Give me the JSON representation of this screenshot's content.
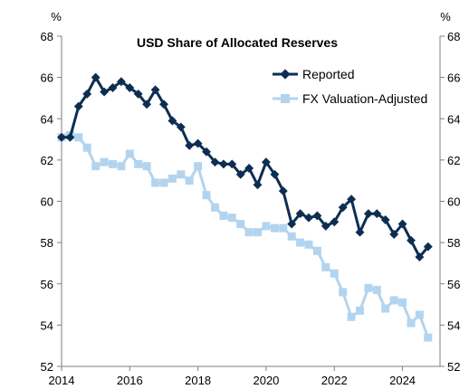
{
  "chart_data": {
    "type": "line",
    "title": "USD Share of Allocated Reserves",
    "unit_left": "%",
    "unit_right": "%",
    "ylim": [
      52,
      68
    ],
    "yticks": [
      52,
      54,
      56,
      58,
      60,
      62,
      64,
      66,
      68
    ],
    "xlim": [
      2014,
      2025.1
    ],
    "xticks": [
      2014,
      2016,
      2018,
      2020,
      2022,
      2024
    ],
    "grid": false,
    "legend_position": "top-right",
    "series": [
      {
        "name": "Reported",
        "color": "#0d2e52",
        "marker": "diamond",
        "x": [
          2014.0,
          2014.25,
          2014.5,
          2014.75,
          2015.0,
          2015.25,
          2015.5,
          2015.75,
          2016.0,
          2016.25,
          2016.5,
          2016.75,
          2017.0,
          2017.25,
          2017.5,
          2017.75,
          2018.0,
          2018.25,
          2018.5,
          2018.75,
          2019.0,
          2019.25,
          2019.5,
          2019.75,
          2020.0,
          2020.25,
          2020.5,
          2020.75,
          2021.0,
          2021.25,
          2021.5,
          2021.75,
          2022.0,
          2022.25,
          2022.5,
          2022.75,
          2023.0,
          2023.25,
          2023.5,
          2023.75,
          2024.0,
          2024.25,
          2024.5,
          2024.75
        ],
        "values": [
          63.1,
          63.1,
          64.6,
          65.2,
          66.0,
          65.3,
          65.5,
          65.8,
          65.5,
          65.2,
          64.7,
          65.4,
          64.7,
          63.9,
          63.6,
          62.7,
          62.8,
          62.4,
          61.9,
          61.8,
          61.8,
          61.3,
          61.6,
          60.8,
          61.9,
          61.3,
          60.5,
          58.9,
          59.4,
          59.2,
          59.3,
          58.8,
          59.0,
          59.7,
          60.1,
          58.5,
          59.4,
          59.4,
          59.1,
          58.4,
          58.9,
          58.1,
          57.3,
          57.8
        ]
      },
      {
        "name": "FX Valuation-Adjusted",
        "color": "#b3d4ee",
        "marker": "square",
        "x": [
          2014.0,
          2014.25,
          2014.5,
          2014.75,
          2015.0,
          2015.25,
          2015.5,
          2015.75,
          2016.0,
          2016.25,
          2016.5,
          2016.75,
          2017.0,
          2017.25,
          2017.5,
          2017.75,
          2018.0,
          2018.25,
          2018.5,
          2018.75,
          2019.0,
          2019.25,
          2019.5,
          2019.75,
          2020.0,
          2020.25,
          2020.5,
          2020.75,
          2021.0,
          2021.25,
          2021.5,
          2021.75,
          2022.0,
          2022.25,
          2022.5,
          2022.75,
          2023.0,
          2023.25,
          2023.5,
          2023.75,
          2024.0,
          2024.25,
          2024.5,
          2024.75
        ],
        "values": [
          63.1,
          63.2,
          63.1,
          62.6,
          61.7,
          61.9,
          61.8,
          61.7,
          62.3,
          61.8,
          61.7,
          60.9,
          60.9,
          61.1,
          61.3,
          61.0,
          61.7,
          60.3,
          59.7,
          59.3,
          59.2,
          58.9,
          58.5,
          58.5,
          58.8,
          58.7,
          58.7,
          58.3,
          58.0,
          57.9,
          57.6,
          56.8,
          56.5,
          55.6,
          54.4,
          54.7,
          55.8,
          55.7,
          54.8,
          55.2,
          55.1,
          54.1,
          54.5,
          53.4
        ]
      }
    ]
  }
}
